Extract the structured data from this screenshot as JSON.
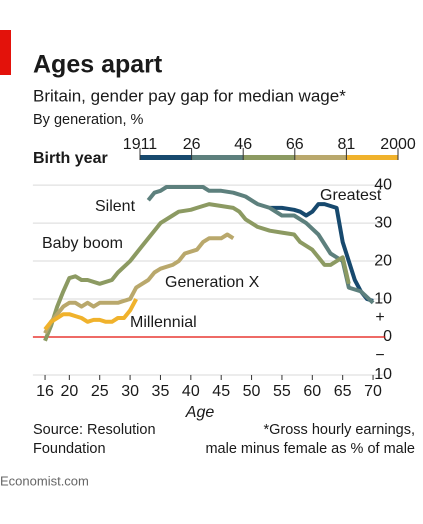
{
  "chart_data": {
    "type": "line",
    "title": "Ages apart",
    "subtitle": "Britain, gender pay gap for median wage*",
    "unit_note": "By generation, %",
    "legend_title": "Birth year",
    "birth_year_ticks": [
      "1911",
      "26",
      "46",
      "66",
      "81",
      "2000"
    ],
    "x_label": "Age",
    "xlim": [
      14,
      72
    ],
    "xticks": [
      16,
      20,
      25,
      30,
      35,
      40,
      45,
      50,
      55,
      60,
      65,
      70
    ],
    "ylim": [
      -10,
      42
    ],
    "yticks": [
      {
        "value": -10,
        "label": "10"
      },
      0,
      10,
      20,
      30,
      40
    ],
    "sign_labels": [
      "+",
      "−"
    ],
    "grid": true,
    "zero_line_color": "#e3120b",
    "series": [
      {
        "name": "Greatest",
        "color": "#17496e",
        "x": [
          53,
          55,
          57,
          58,
          59,
          60,
          61,
          62,
          63,
          64,
          65,
          66,
          67,
          68,
          69,
          70
        ],
        "values": [
          34,
          34,
          33.5,
          33,
          32,
          33,
          35,
          35,
          34.5,
          34,
          25,
          20,
          15,
          12,
          10,
          9.5
        ]
      },
      {
        "name": "Silent",
        "color": "#5d807d",
        "x": [
          33,
          34,
          35,
          36,
          40,
          42,
          43,
          45,
          47,
          49,
          51,
          53,
          55,
          57,
          59,
          61,
          63,
          64,
          65,
          66,
          68,
          70
        ],
        "values": [
          36,
          38,
          38.5,
          39.5,
          39.5,
          39.5,
          38.5,
          38.5,
          38,
          37,
          35,
          34,
          32,
          32,
          30,
          27,
          22,
          21,
          20,
          13,
          12,
          9
        ]
      },
      {
        "name": "Baby boom",
        "color": "#8c9a62",
        "x": [
          16,
          17,
          18,
          19,
          20,
          21,
          22,
          23,
          25,
          27,
          28,
          30,
          32,
          34,
          35,
          37,
          38,
          40,
          41,
          43,
          45,
          47,
          48,
          49,
          51,
          53,
          55,
          57,
          58,
          60,
          61,
          62,
          63,
          64,
          65,
          66
        ],
        "values": [
          -1,
          3,
          8,
          12,
          15.5,
          16,
          15,
          15,
          14,
          15,
          17,
          20,
          24,
          28,
          30,
          32,
          33,
          33.5,
          34,
          35,
          34.5,
          34,
          33,
          31,
          29,
          28,
          27.5,
          27,
          25,
          23,
          21,
          19,
          19,
          20,
          21,
          14
        ]
      },
      {
        "name": "Generation X",
        "color": "#b9a86c",
        "x": [
          16,
          17,
          18,
          19,
          20,
          21,
          22,
          23,
          24,
          25,
          26,
          28,
          29,
          30,
          31,
          32,
          33,
          34,
          35,
          37,
          38,
          39,
          41,
          42,
          43,
          45,
          46,
          47
        ],
        "values": [
          1,
          4,
          6,
          8,
          9,
          9,
          8,
          9,
          8,
          9,
          9,
          9,
          9.5,
          10,
          13,
          14,
          15,
          17,
          18,
          19,
          20,
          22,
          23,
          25,
          26,
          26,
          27,
          26
        ]
      },
      {
        "name": "Millennial",
        "color": "#f0b22c",
        "x": [
          16,
          17,
          18,
          19,
          20,
          21,
          22,
          23,
          24,
          25,
          26,
          27,
          28,
          29,
          30,
          31
        ],
        "values": [
          2,
          4,
          5,
          6,
          6,
          5.5,
          5,
          4,
          4.5,
          4.5,
          4,
          4,
          5,
          5,
          7,
          10
        ]
      }
    ],
    "source": [
      "Source: Resolution",
      "Foundation"
    ],
    "footnote": [
      "*Gross hourly earnings,",
      "male minus female as % of male"
    ],
    "branding": "Economist.com"
  }
}
